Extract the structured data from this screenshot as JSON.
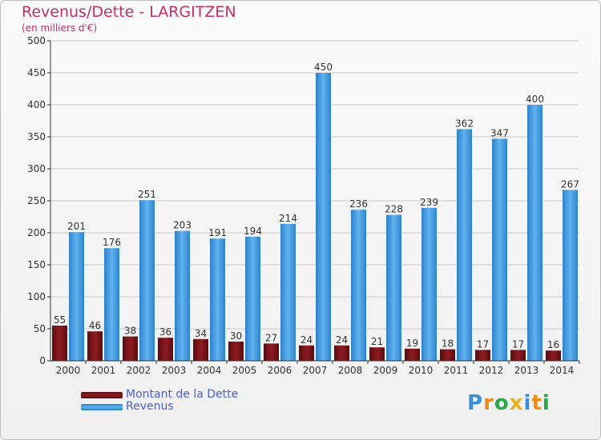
{
  "header": {
    "title": "Revenus/Dette - LARGITZEN",
    "unit": "(en milliers d'€)"
  },
  "colors": {
    "debt": "#7a1218",
    "revenue": "#4a9fe0",
    "axis": "#333333",
    "grid": "#cccccc",
    "title": "#c0306a",
    "legend_text": "#4a5fd4"
  },
  "chart_data": {
    "type": "bar",
    "title": "Revenus/Dette - LARGITZEN",
    "ylabel": "(en milliers d'€)",
    "xlabel": "",
    "categories": [
      "2000",
      "2001",
      "2002",
      "2003",
      "2004",
      "2005",
      "2006",
      "2007",
      "2008",
      "2009",
      "2010",
      "2011",
      "2012",
      "2013",
      "2014"
    ],
    "series": [
      {
        "name": "Montant de la Dette",
        "values": [
          55,
          46,
          38,
          36,
          34,
          30,
          27,
          24,
          24,
          21,
          19,
          18,
          17,
          17,
          16
        ]
      },
      {
        "name": "Revenus",
        "values": [
          201,
          176,
          251,
          203,
          191,
          194,
          214,
          450,
          236,
          228,
          239,
          362,
          347,
          400,
          267
        ]
      }
    ],
    "ylim": [
      0,
      500
    ],
    "yticks": [
      0,
      50,
      100,
      150,
      200,
      250,
      300,
      350,
      400,
      450,
      500
    ],
    "grid": true,
    "legend": "bottom-left"
  },
  "legend": {
    "items": [
      {
        "label": "Montant de la Dette",
        "color": "#7a1218"
      },
      {
        "label": "Revenus",
        "color": "#4a9fe0"
      }
    ]
  },
  "logo": {
    "letters": [
      "P",
      "r",
      "o",
      "x",
      "i",
      "t",
      "i"
    ],
    "colors": [
      "#3a8fd8",
      "#f08c1c",
      "#2aa84a",
      "#e8b020",
      "#3a8fd8",
      "#f08c1c",
      "#2aa84a"
    ]
  }
}
